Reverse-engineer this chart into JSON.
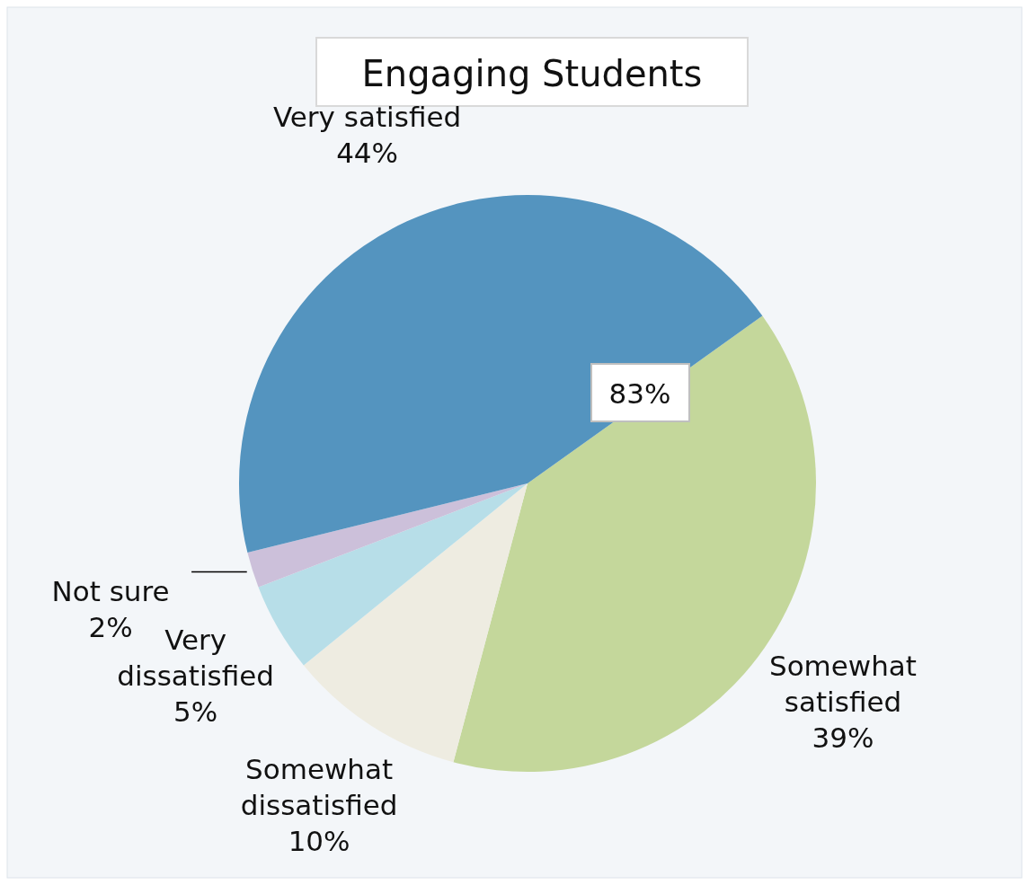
{
  "chart_data": {
    "type": "pie",
    "title": "Engaging Students",
    "categories": [
      "Somewhat satisfied",
      "Somewhat dissatisfied",
      "Very dissatisfied",
      "Not sure",
      "Very satisfied"
    ],
    "values": [
      39,
      10,
      5,
      2,
      44
    ],
    "colors": [
      "#c4d79b",
      "#eeece1",
      "#b7dee8",
      "#ccc0da",
      "#5494bf"
    ],
    "value_labels": [
      "39%",
      "10%",
      "5%",
      "2%",
      "44%"
    ],
    "annotations": [
      "83%"
    ]
  }
}
